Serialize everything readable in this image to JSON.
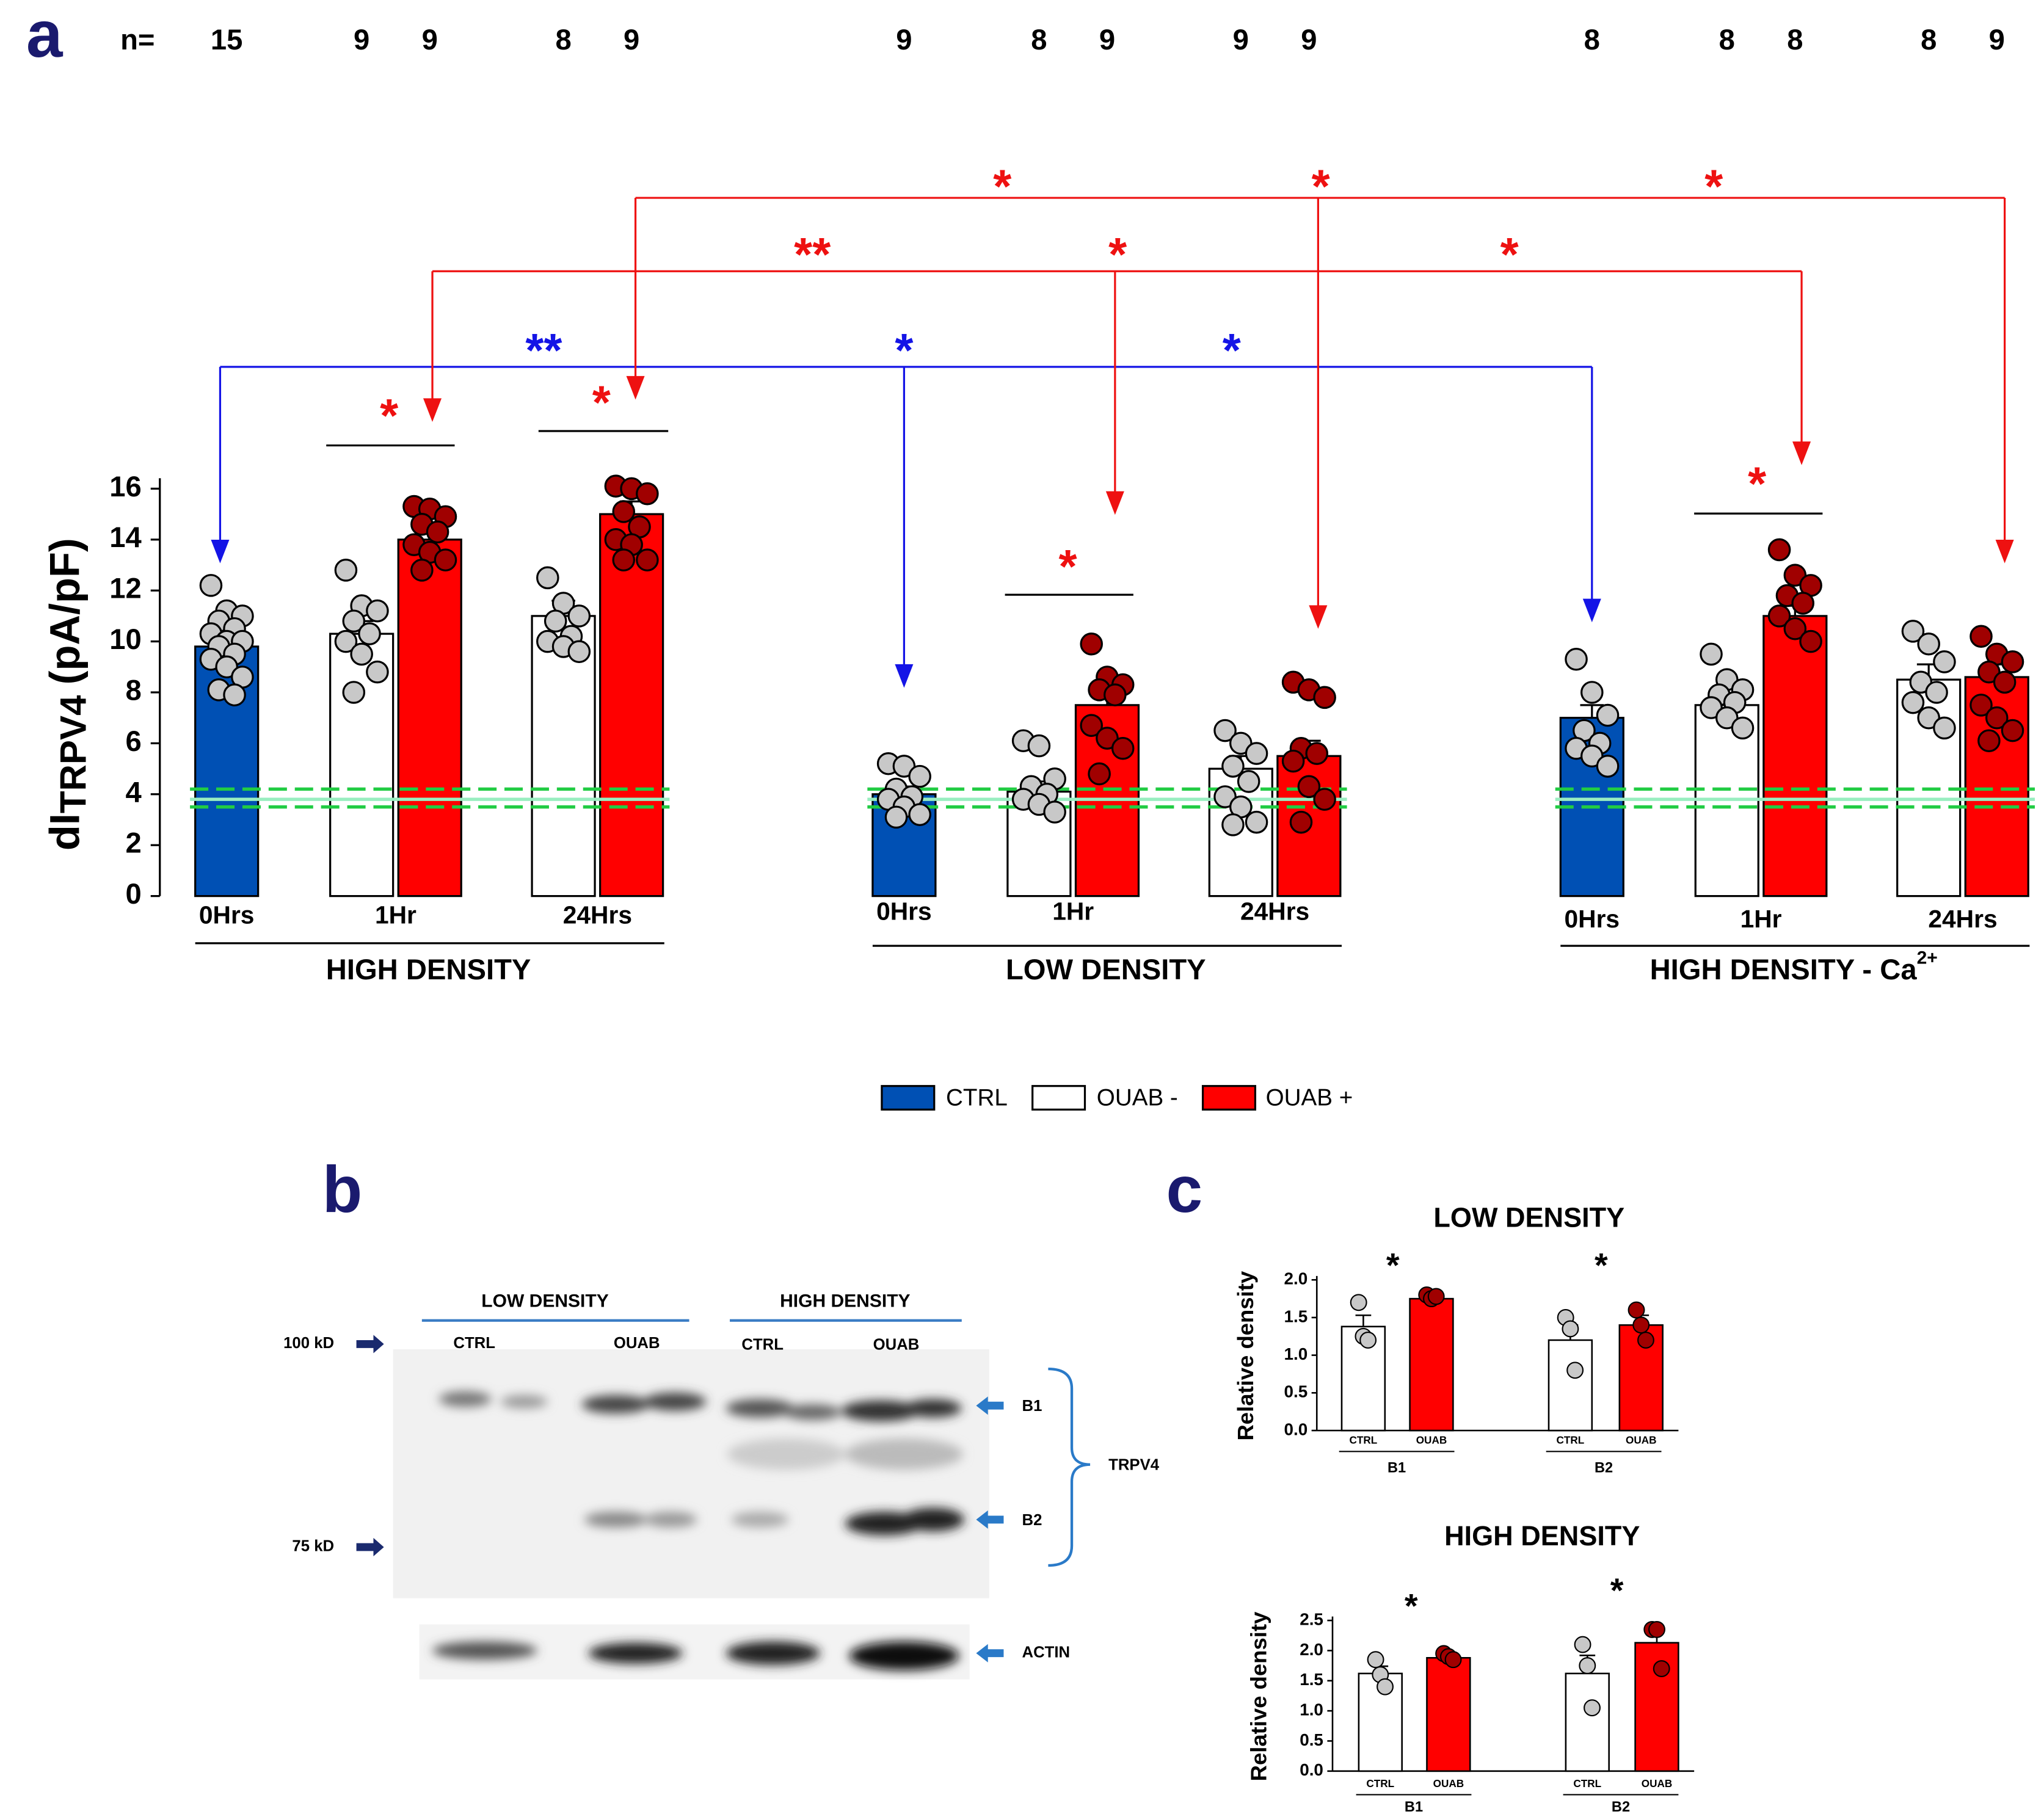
{
  "panel_labels": [
    "a",
    "b",
    "c"
  ],
  "chart_data": [
    {
      "type": "bar",
      "y_label": "dI",
      "y_label_sub": "TRPV4",
      "y_label_unit": "(pA/pF)",
      "n_label": "n=",
      "ylim": [
        0,
        16
      ],
      "yticks": [
        0,
        2,
        4,
        6,
        8,
        10,
        12,
        14,
        16
      ],
      "categories": [
        "0Hrs",
        "1Hr",
        "24Hrs",
        "0Hrs",
        "1Hr",
        "24Hrs",
        "0Hrs",
        "1Hr",
        "24Hrs"
      ],
      "groups": [
        {
          "label": "HIGH DENSITY"
        },
        {
          "label": "LOW DENSITY"
        },
        {
          "label": "HIGH DENSITY - Ca",
          "label_sup": "2+"
        }
      ],
      "series": [
        {
          "name": "CTRL",
          "color": "#0050b4",
          "point_color": "#c8c8c8",
          "values": [
            9.8,
            null,
            null,
            4.0,
            null,
            null,
            7.0,
            null,
            null
          ],
          "errors": [
            0.3,
            null,
            null,
            0.3,
            null,
            null,
            0.5,
            null,
            null
          ],
          "n": [
            15,
            null,
            null,
            9,
            null,
            null,
            8,
            null,
            null
          ],
          "points": [
            [
              12.2,
              11.2,
              11.0,
              10.8,
              10.5,
              10.3,
              10.0,
              10.0,
              9.8,
              9.5,
              9.3,
              9.0,
              8.6,
              8.1,
              7.9
            ],
            null,
            null,
            [
              5.2,
              5.1,
              4.7,
              4.2,
              3.9,
              3.8,
              3.5,
              3.2,
              3.1
            ],
            null,
            null,
            [
              9.3,
              8.0,
              7.1,
              6.5,
              6.0,
              5.8,
              5.5,
              5.1
            ],
            null,
            null
          ]
        },
        {
          "name": "OUAB -",
          "color": "#ffffff",
          "point_color": "#c8c8c8",
          "values": [
            null,
            10.3,
            11.0,
            null,
            4.1,
            5.0,
            null,
            7.5,
            8.5
          ],
          "errors": [
            null,
            0.5,
            0.6,
            null,
            0.4,
            0.5,
            null,
            0.4,
            0.6
          ],
          "n": [
            null,
            9,
            8,
            null,
            8,
            9,
            null,
            8,
            8
          ],
          "points": [
            null,
            [
              12.8,
              11.4,
              11.2,
              10.8,
              10.3,
              10.0,
              9.5,
              8.8,
              8.0
            ],
            [
              12.5,
              11.5,
              11.0,
              10.8,
              10.2,
              10.0,
              9.8,
              9.6
            ],
            null,
            [
              6.1,
              5.9,
              4.6,
              4.3,
              4.0,
              3.8,
              3.6,
              3.3
            ],
            [
              6.5,
              6.0,
              5.6,
              5.1,
              4.5,
              3.9,
              3.5,
              2.9,
              2.8
            ],
            null,
            [
              9.5,
              8.5,
              8.1,
              7.9,
              7.6,
              7.4,
              7.0,
              6.6
            ],
            [
              10.4,
              9.9,
              9.2,
              8.4,
              8.0,
              7.6,
              7.0,
              6.6
            ]
          ]
        },
        {
          "name": "OUAB +",
          "color": "#ff0000",
          "point_color": "#a00000",
          "values": [
            null,
            14.0,
            15.0,
            null,
            7.5,
            5.5,
            null,
            11.0,
            8.6
          ],
          "errors": [
            null,
            0.4,
            0.5,
            null,
            0.6,
            0.6,
            null,
            0.4,
            0.5
          ],
          "n": [
            null,
            9,
            9,
            null,
            9,
            9,
            null,
            8,
            9
          ],
          "points": [
            null,
            [
              15.3,
              15.2,
              14.9,
              14.6,
              14.3,
              13.8,
              13.5,
              13.2,
              12.8
            ],
            [
              16.1,
              16.0,
              15.8,
              15.1,
              14.5,
              14.0,
              13.8,
              13.2,
              13.2
            ],
            null,
            [
              9.9,
              8.6,
              8.3,
              8.1,
              7.9,
              6.7,
              6.2,
              5.8,
              4.8
            ],
            [
              8.4,
              8.1,
              7.8,
              5.8,
              5.6,
              5.3,
              4.3,
              3.8,
              2.9
            ],
            null,
            [
              13.6,
              12.6,
              12.2,
              11.8,
              11.5,
              11.0,
              10.5,
              10.0
            ],
            [
              10.2,
              9.5,
              9.2,
              8.8,
              8.4,
              7.5,
              7.0,
              6.5,
              6.1
            ]
          ]
        }
      ],
      "reference_lines": [
        {
          "value": 4.2,
          "style": "dashed",
          "color": "#22cc44"
        },
        {
          "value": 3.8,
          "style": "solid",
          "color": "#99eec0"
        },
        {
          "value": 3.5,
          "style": "dashed",
          "color": "#22cc44"
        }
      ],
      "annotations": [
        "**",
        "*",
        "*",
        "**",
        "*",
        "*",
        "*",
        "*",
        "*",
        "*",
        "*",
        "*",
        "*"
      ]
    },
    {
      "type": "bar",
      "title": "LOW DENSITY",
      "y_label": "Relative density",
      "ylim": [
        0,
        2
      ],
      "yticks": [
        {
          "value": 0,
          "label": "0.0"
        },
        0.5,
        {
          "value": 1,
          "label": "1.0"
        },
        1.5,
        {
          "value": 2,
          "label": "2.0"
        }
      ],
      "categories": [
        "CTRL",
        "OUAB",
        "CTRL",
        "OUAB"
      ],
      "groups": [
        "B1",
        "B2"
      ],
      "colors": [
        "#ffffff",
        "#ff0000",
        "#ffffff",
        "#ff0000"
      ],
      "point_colors": [
        "#c8c8c8",
        "#a00000",
        "#c8c8c8",
        "#a00000"
      ],
      "values": [
        1.38,
        1.75,
        1.2,
        1.4
      ],
      "errors": [
        0.15,
        0.03,
        0.2,
        0.13
      ],
      "points": [
        [
          1.7,
          1.25,
          1.2
        ],
        [
          1.8,
          1.75,
          1.78
        ],
        [
          1.5,
          1.35,
          0.8
        ],
        [
          1.6,
          1.4,
          1.2
        ]
      ],
      "annotations": [
        "*",
        "*"
      ]
    },
    {
      "type": "bar",
      "title": "HIGH DENSITY",
      "y_label": "Relative density",
      "ylim": [
        0,
        2.5
      ],
      "yticks": [
        {
          "value": 0,
          "label": "0.0"
        },
        0.5,
        {
          "value": 1,
          "label": "1.0"
        },
        1.5,
        {
          "value": 2,
          "label": "2.0"
        },
        2.5
      ],
      "categories": [
        "CTRL",
        "OUAB",
        "CTRL",
        "OUAB"
      ],
      "groups": [
        "B1",
        "B2"
      ],
      "colors": [
        "#ffffff",
        "#ff0000",
        "#ffffff",
        "#ff0000"
      ],
      "point_colors": [
        "#c8c8c8",
        "#a00000",
        "#c8c8c8",
        "#a00000"
      ],
      "values": [
        1.62,
        1.88,
        1.62,
        2.13
      ],
      "errors": [
        0.12,
        0.04,
        0.3,
        0.2
      ],
      "points": [
        [
          1.85,
          1.6,
          1.4
        ],
        [
          1.95,
          1.9,
          1.85
        ],
        [
          2.1,
          1.75,
          1.05
        ],
        [
          2.35,
          2.35,
          1.7
        ]
      ],
      "annotations": [
        "*",
        "*"
      ]
    }
  ],
  "blot": {
    "groups": [
      "LOW DENSITY",
      "HIGH DENSITY"
    ],
    "lanes": [
      "CTRL",
      "OUAB",
      "CTRL",
      "OUAB"
    ],
    "markers": [
      "100 kD",
      "75 kD"
    ],
    "bands": [
      "B1",
      "B2"
    ],
    "protein": "TRPV4",
    "loading": "ACTIN"
  }
}
